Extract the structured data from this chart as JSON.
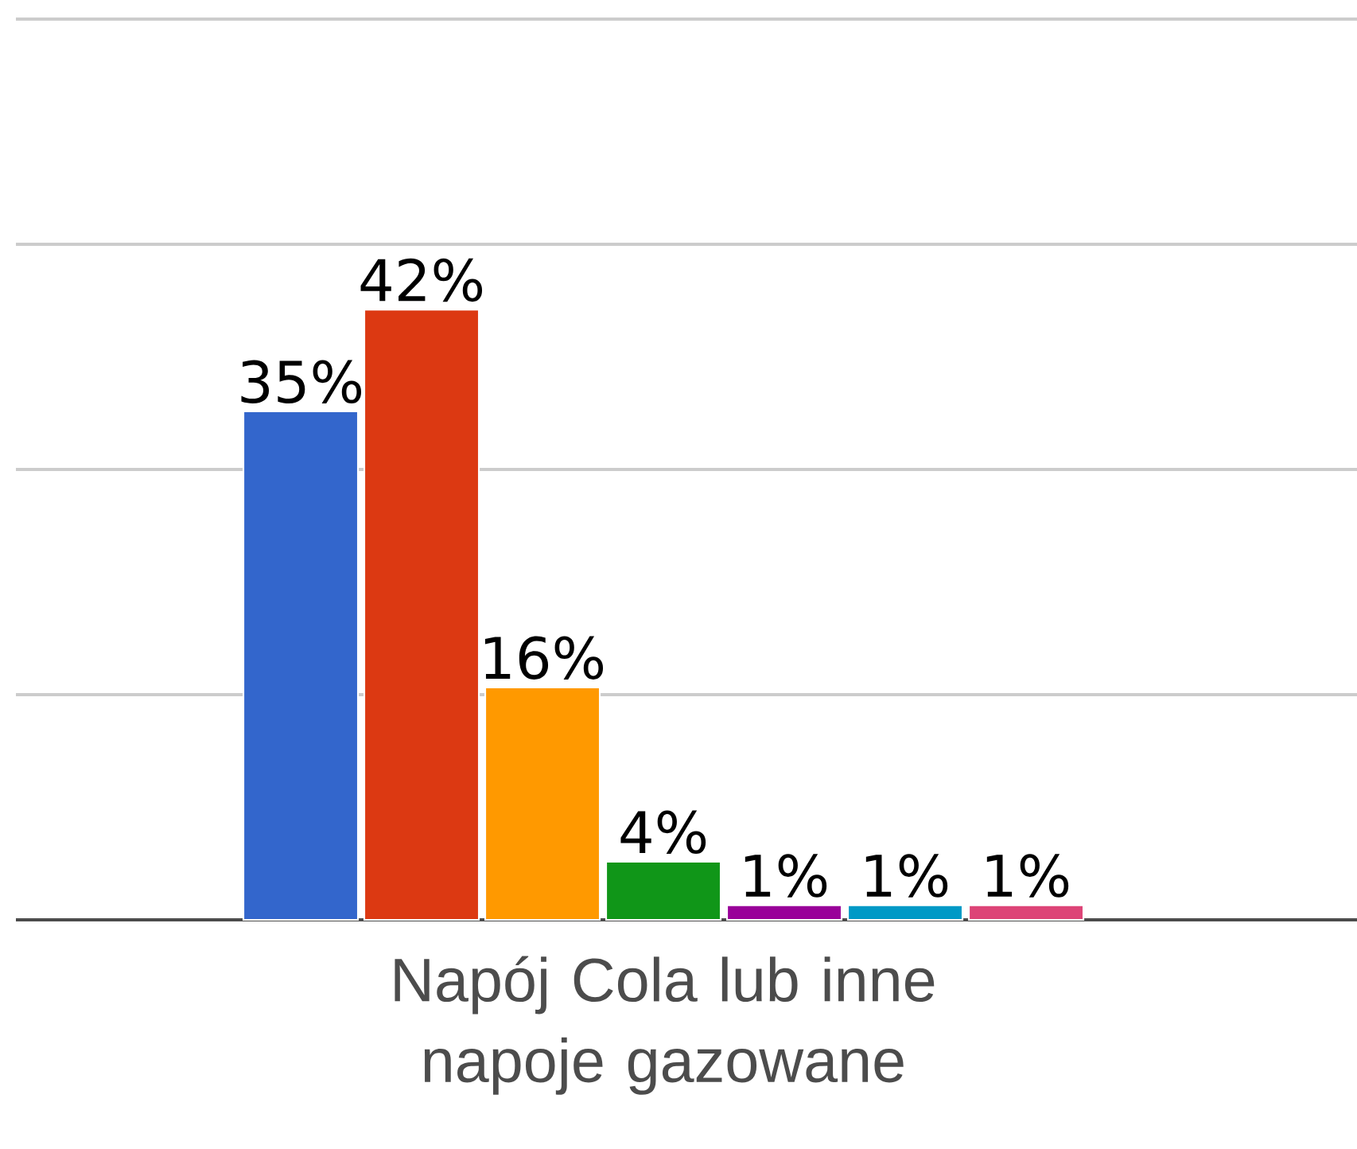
{
  "chart_data": {
    "type": "bar",
    "xlabel": "Napój Cola lub inne napoje gazowane",
    "categories": [
      null,
      null,
      null,
      null,
      null,
      null,
      null
    ],
    "values": [
      35,
      42,
      16,
      4,
      1,
      1,
      1
    ],
    "colors": [
      "#3366cc",
      "#dc3912",
      "#ff9900",
      "#109618",
      "#990099",
      "#0099c6",
      "#dd4477"
    ],
    "value_labels": [
      "35%",
      "42%",
      "16%",
      "4%",
      "1%",
      "1%",
      "1%"
    ],
    "ylim": [
      0,
      62
    ],
    "yticks": [
      {
        "value": 0,
        "label": null
      },
      {
        "value": 15.5,
        "label": null
      },
      {
        "value": 31,
        "label": null
      },
      {
        "value": 46.5,
        "label": null
      },
      {
        "value": 62,
        "label": null
      }
    ],
    "grid": "y"
  }
}
